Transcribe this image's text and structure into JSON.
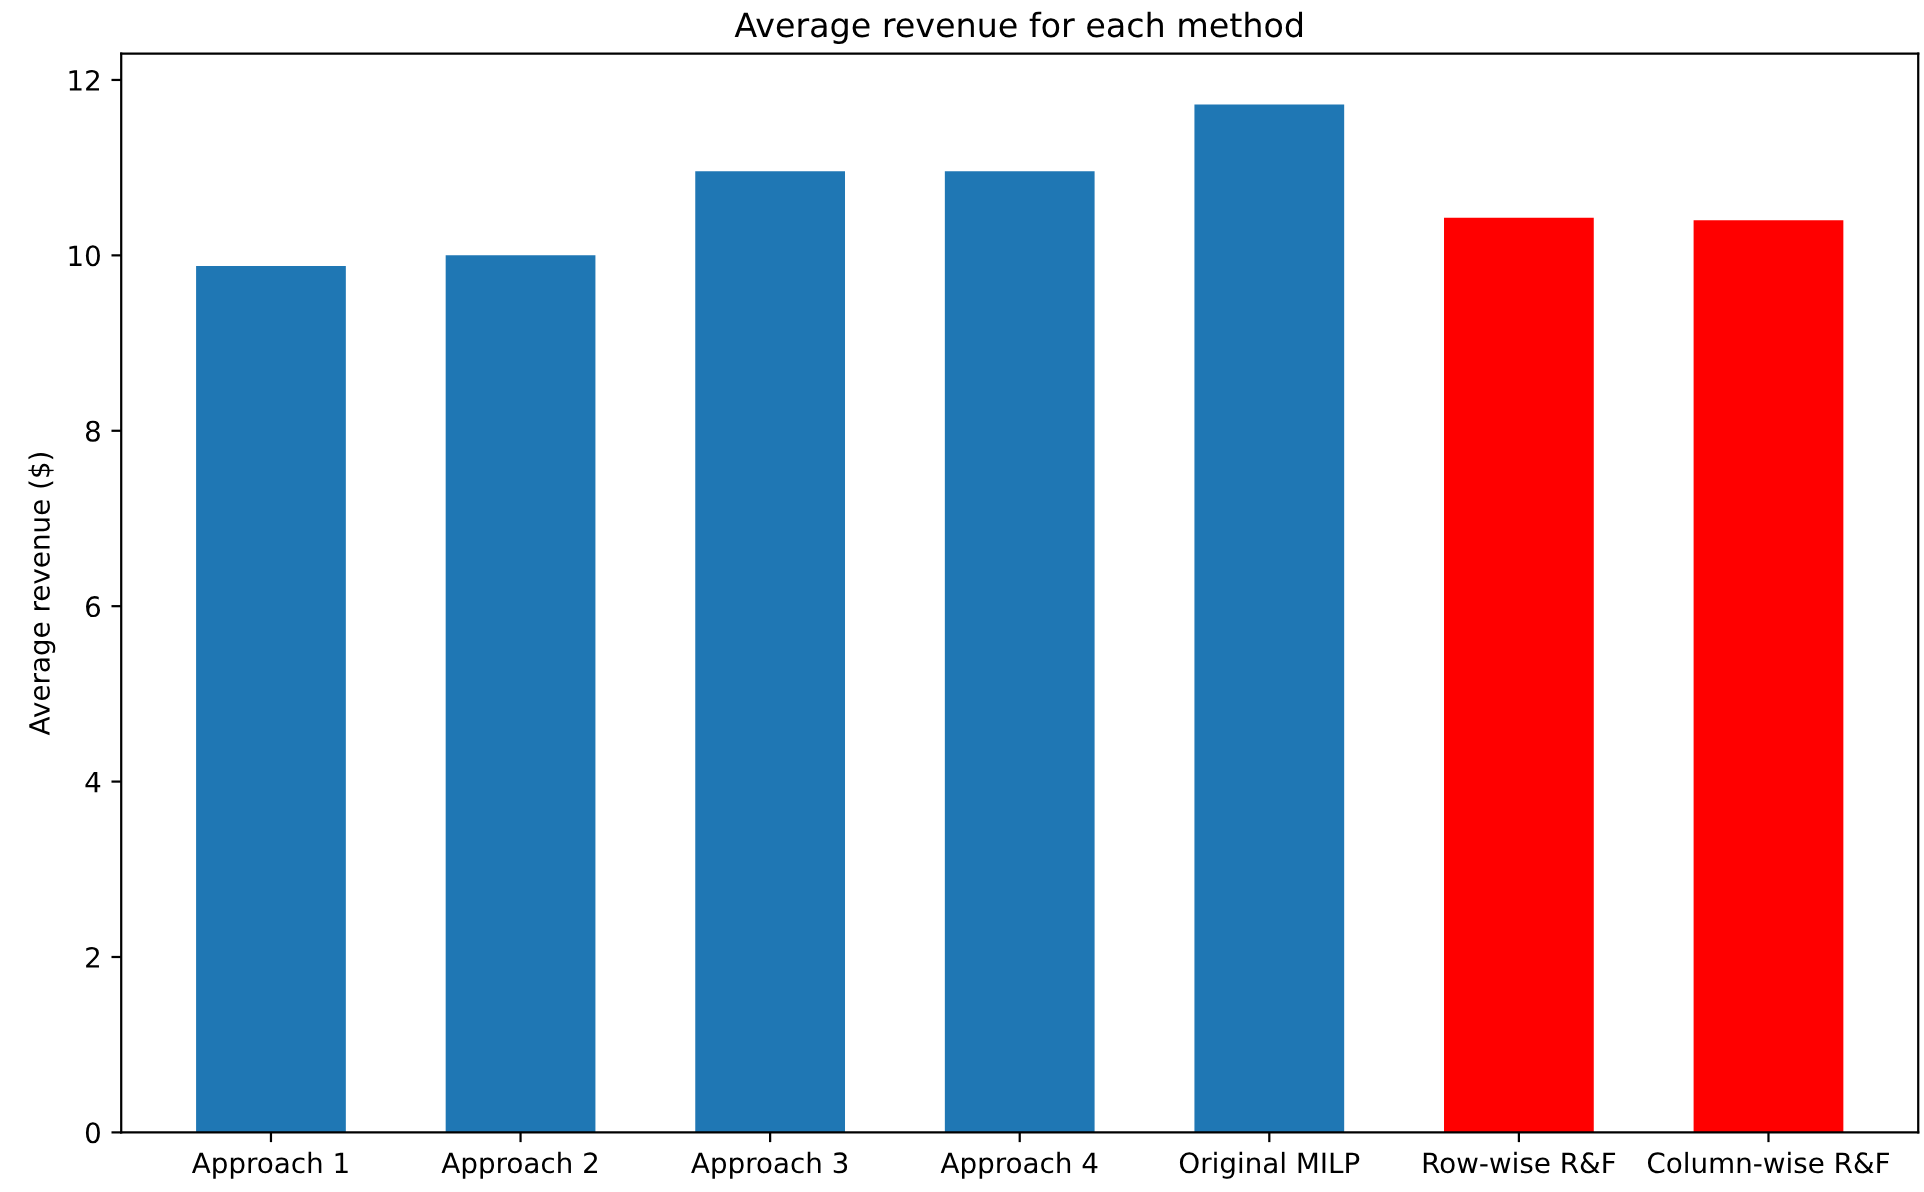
{
  "chart_data": {
    "type": "bar",
    "title": "Average revenue for each method",
    "ylabel": "Average revenue ($)",
    "categories": [
      "Approach 1",
      "Approach 2",
      "Approach 3",
      "Approach 4",
      "Original MILP",
      "Row-wise R&F",
      "Column-wise R&F"
    ],
    "values": [
      9.88,
      10.0,
      10.96,
      10.96,
      11.72,
      10.43,
      10.4
    ],
    "colors": [
      "#1f77b4",
      "#1f77b4",
      "#1f77b4",
      "#1f77b4",
      "#1f77b4",
      "#ff0000",
      "#ff0000"
    ],
    "ylim": [
      0,
      12.3
    ],
    "yticks": [
      0,
      2,
      4,
      6,
      8,
      10,
      12
    ],
    "grid": false
  }
}
